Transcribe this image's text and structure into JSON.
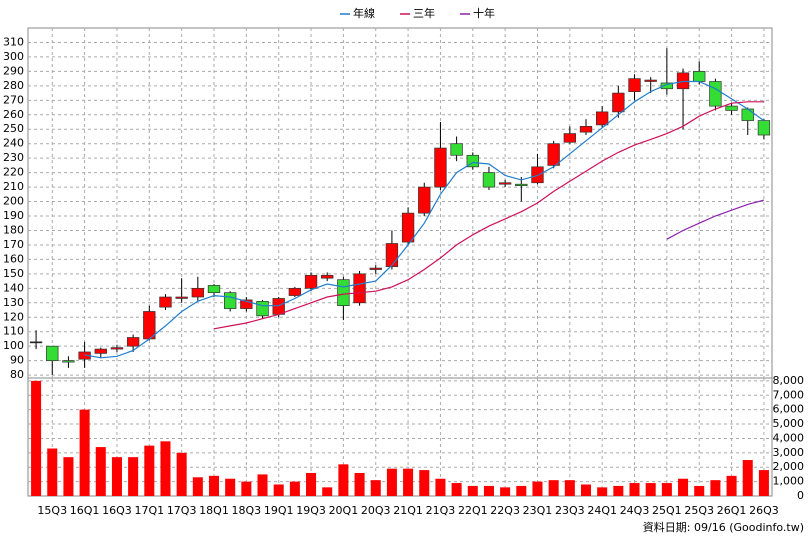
{
  "chart_data": [
    {
      "type": "candlestick",
      "categories": [
        null,
        "15Q3",
        null,
        "16Q1",
        null,
        "16Q3",
        null,
        "17Q1",
        null,
        "17Q3",
        null,
        "18Q1",
        null,
        "18Q3",
        null,
        "19Q1",
        null,
        "19Q3",
        null,
        "20Q1",
        null,
        "20Q3",
        null,
        "21Q1",
        null,
        "21Q3",
        null,
        "22Q1",
        null,
        "22Q3",
        null,
        "23Q1",
        null,
        "23Q3",
        null,
        "24Q1",
        null,
        "24Q3",
        null,
        "25Q1",
        null,
        "25Q3",
        null,
        "26Q1",
        null,
        "26Q3"
      ],
      "open": [
        103,
        100,
        90,
        91,
        95,
        98,
        100,
        105,
        127,
        133,
        134,
        142,
        137,
        126,
        131,
        122,
        135,
        140,
        147,
        146,
        130,
        153,
        155,
        172,
        192,
        210,
        240,
        232,
        220,
        212,
        212,
        213,
        225,
        241,
        248,
        253,
        262,
        276,
        283,
        282,
        278,
        290,
        283,
        266,
        264,
        256
      ],
      "high": [
        111,
        100,
        93,
        103,
        99,
        101,
        108,
        128,
        136,
        147,
        148,
        143,
        138,
        134,
        132,
        134,
        141,
        151,
        151,
        148,
        152,
        156,
        180,
        196,
        213,
        255,
        245,
        234,
        224,
        215,
        217,
        233,
        242,
        252,
        257,
        266,
        280,
        288,
        286,
        306,
        292,
        297,
        285,
        268,
        265,
        257
      ],
      "low": [
        98,
        80,
        85,
        85,
        92,
        96,
        96,
        104,
        125,
        130,
        131,
        134,
        124,
        124,
        119,
        120,
        134,
        138,
        145,
        118,
        128,
        150,
        153,
        170,
        190,
        208,
        228,
        222,
        208,
        210,
        200,
        212,
        223,
        240,
        246,
        251,
        258,
        270,
        275,
        274,
        250,
        281,
        263,
        260,
        246,
        243
      ],
      "close": [
        103,
        90,
        89,
        96,
        98,
        99,
        106,
        124,
        134,
        134,
        140,
        137,
        126,
        132,
        121,
        133,
        140,
        149,
        149,
        128,
        150,
        154,
        171,
        192,
        210,
        237,
        232,
        224,
        210,
        213,
        211,
        224,
        240,
        247,
        252,
        262,
        275,
        285,
        284,
        278,
        289,
        283,
        266,
        263,
        256,
        246
      ],
      "up_color": "#ff0000",
      "down_color": "#33dd33",
      "series": [
        {
          "name": "年線",
          "color": "#1f7fd0",
          "values": [
            null,
            null,
            null,
            94,
            92,
            93,
            97,
            105,
            114,
            124,
            131,
            135,
            134,
            131,
            128,
            128,
            133,
            139,
            143,
            141,
            143,
            145,
            156,
            170,
            185,
            205,
            220,
            227,
            226,
            218,
            215,
            218,
            224,
            233,
            242,
            251,
            260,
            269,
            276,
            281,
            283,
            283,
            278,
            271,
            264,
            256
          ]
        },
        {
          "name": "三年",
          "color": "#d0105a",
          "values": [
            null,
            null,
            null,
            null,
            null,
            null,
            null,
            null,
            null,
            null,
            null,
            112,
            114,
            116,
            119,
            122,
            126,
            130,
            134,
            136,
            137,
            138,
            141,
            146,
            153,
            161,
            170,
            177,
            183,
            188,
            193,
            199,
            207,
            214,
            221,
            228,
            234,
            239,
            243,
            247,
            252,
            259,
            264,
            268,
            269,
            269
          ]
        },
        {
          "name": "十年",
          "color": "#9020b0",
          "values": [
            null,
            null,
            null,
            null,
            null,
            null,
            null,
            null,
            null,
            null,
            null,
            null,
            null,
            null,
            null,
            null,
            null,
            null,
            null,
            null,
            null,
            null,
            null,
            null,
            null,
            null,
            null,
            null,
            null,
            null,
            null,
            null,
            null,
            null,
            null,
            null,
            null,
            null,
            null,
            174,
            180,
            185,
            190,
            194,
            198,
            201
          ]
        }
      ],
      "ylim": [
        78,
        320
      ],
      "yticks": [
        80,
        90,
        100,
        110,
        120,
        130,
        140,
        150,
        160,
        170,
        180,
        190,
        200,
        210,
        220,
        230,
        240,
        250,
        260,
        270,
        280,
        290,
        300,
        310
      ],
      "grid": true
    },
    {
      "type": "bar",
      "values": [
        8000,
        3300,
        2700,
        6000,
        3400,
        2700,
        2700,
        3500,
        3800,
        3000,
        1300,
        1400,
        1200,
        1000,
        1500,
        800,
        1000,
        1600,
        600,
        2200,
        1600,
        1100,
        1900,
        1900,
        1800,
        1200,
        900,
        700,
        700,
        600,
        700,
        1000,
        1100,
        1100,
        800,
        600,
        700,
        900,
        900,
        900,
        1200,
        700,
        1100,
        1400,
        2500,
        1800
      ],
      "color": "#ff0000",
      "ylim": [
        0,
        8200
      ],
      "yticks": [
        0,
        {
          "value": 1000,
          "label": "1,000"
        },
        {
          "value": 2000,
          "label": "2,000"
        },
        {
          "value": 3000,
          "label": "3,000"
        },
        {
          "value": 4000,
          "label": "4,000"
        },
        {
          "value": 5000,
          "label": "5,000"
        },
        {
          "value": 6000,
          "label": "6,000"
        },
        {
          "value": 7000,
          "label": "7,000"
        },
        {
          "value": 8000,
          "label": "8,000"
        }
      ],
      "grid": true,
      "source": "資料日期: 09/16 (Goodinfo.tw)"
    }
  ]
}
